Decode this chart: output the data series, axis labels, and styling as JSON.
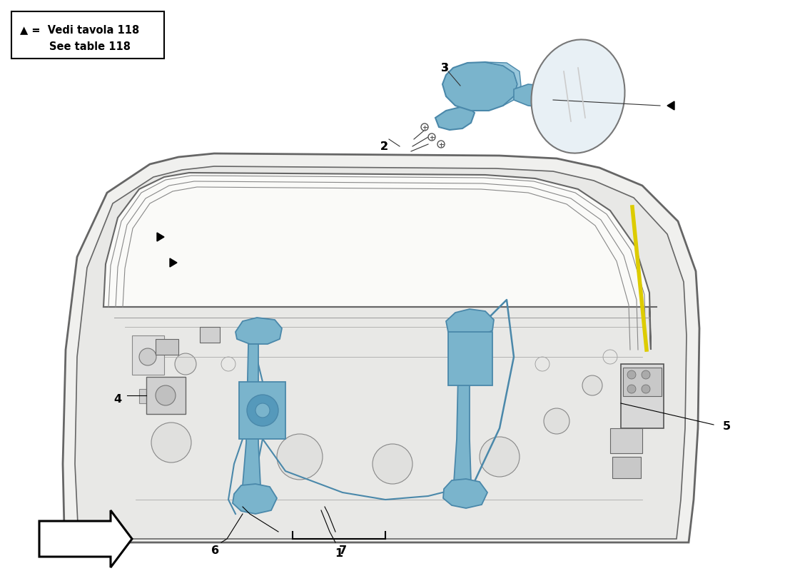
{
  "background_color": "#ffffff",
  "legend_text1": "▲ =  Vedi tavola 118",
  "legend_text2": "        See table 118",
  "highlight_color": "#7ab4cc",
  "highlight_edge": "#4a88aa",
  "door_fill": "#f2f2f2",
  "door_inner_fill": "#fafafa",
  "door_edge": "#666666",
  "mirror_body_color": "#7ab4cc",
  "mirror_glass_fill": "#e8f0f5",
  "mirror_glass_edge": "#555555",
  "watermark_color": "#c8dca0",
  "part_labels": [
    "1",
    "2",
    "3",
    "4",
    "5",
    "6",
    "7"
  ]
}
